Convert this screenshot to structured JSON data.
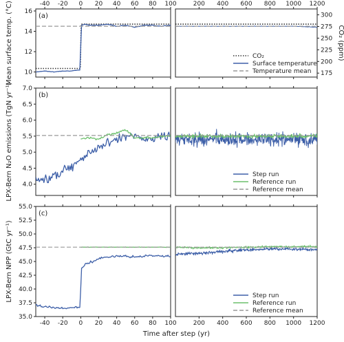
{
  "chart_data": [
    {
      "type": "line",
      "panel_label": "(a)",
      "ylabel": "Mean surface temp. (°C)",
      "ylabel_right": "CO₂ (ppm)",
      "ylim": [
        9.5,
        16.2
      ],
      "yticks": [
        10,
        12,
        14,
        16
      ],
      "ylim_right": [
        166.5,
        312.6
      ],
      "yticks_right": [
        175,
        200,
        225,
        250,
        275,
        300
      ],
      "left_xlim": [
        -50,
        100
      ],
      "left_xticks": [
        -40,
        -20,
        0,
        20,
        40,
        60,
        80,
        100
      ],
      "right_xlim": [
        0,
        1200
      ],
      "right_xticks": [
        200,
        400,
        600,
        800,
        1000,
        1200
      ],
      "xticks_top": true,
      "series": [
        {
          "name": "CO₂",
          "style": "dotted",
          "color": "#333333",
          "step_data": {
            "x": [
              -50,
              -0.5,
              0.5,
              100
            ],
            "y": [
              185,
              185,
              280,
              280
            ]
          },
          "ref_data": {
            "x": [
              0,
              1200
            ],
            "y": [
              280,
              280
            ]
          }
        },
        {
          "name": "Surface temperature",
          "style": "solid",
          "color": "#3d5fa8",
          "step_data": {
            "x": [
              -50,
              -40,
              -30,
              -20,
              -10,
              -1,
              0,
              1,
              5,
              10,
              20,
              30,
              40,
              50,
              60,
              70,
              80,
              90,
              100
            ],
            "y": [
              10.0,
              10.1,
              10.0,
              10.1,
              10.1,
              10.2,
              12.5,
              14.6,
              14.7,
              14.6,
              14.6,
              14.7,
              14.5,
              14.6,
              14.4,
              14.6,
              14.6,
              14.5,
              14.6
            ]
          },
          "ref_data": {
            "x": [
              0,
              200,
              400,
              600,
              800,
              1000,
              1200
            ],
            "y": [
              14.5,
              14.5,
              14.5,
              14.5,
              14.5,
              14.5,
              14.4
            ]
          }
        },
        {
          "name": "Temperature mean",
          "style": "dashed",
          "color": "#999999",
          "value": 14.5
        }
      ],
      "legend_position": "lower-right"
    },
    {
      "type": "line",
      "panel_label": "(b)",
      "ylabel": "LPX-Bern N₂O emissions (TgN yr⁻¹)",
      "ylim": [
        3.65,
        7.0
      ],
      "yticks": [
        4.0,
        4.5,
        5.0,
        5.5,
        6.0,
        6.5,
        7.0
      ],
      "left_xlim": [
        -50,
        100
      ],
      "right_xlim": [
        0,
        1200
      ],
      "series": [
        {
          "name": "Step run",
          "style": "solid",
          "color": "#3d5fa8",
          "step_data": {
            "x": [
              -50,
              -40,
              -30,
              -20,
              -10,
              0,
              10,
              20,
              30,
              40,
              50,
              60,
              70,
              80,
              90,
              100
            ],
            "y": [
              4.2,
              4.1,
              4.3,
              4.4,
              4.6,
              4.8,
              5.0,
              5.1,
              5.3,
              5.4,
              5.5,
              5.5,
              5.4,
              5.4,
              5.5,
              5.5
            ]
          },
          "ref_data": {
            "x": [
              0,
              100,
              200,
              300,
              400,
              500,
              600,
              700,
              800,
              900,
              1000,
              1100,
              1200
            ],
            "y": [
              5.4,
              5.4,
              5.4,
              5.4,
              5.4,
              5.4,
              5.4,
              5.4,
              5.4,
              5.4,
              5.4,
              5.4,
              5.4
            ]
          }
        },
        {
          "name": "Reference run",
          "style": "solid",
          "color": "#6bbf6b",
          "step_data": {
            "x": [
              0,
              10,
              20,
              30,
              40,
              50,
              60,
              70,
              80,
              90,
              100
            ],
            "y": [
              5.42,
              5.45,
              5.4,
              5.55,
              5.6,
              5.7,
              5.45,
              5.45,
              5.45,
              5.5,
              5.5
            ]
          },
          "ref_data": {
            "x": [
              0,
              100,
              200,
              300,
              400,
              500,
              600,
              700,
              800,
              900,
              1000,
              1100,
              1200
            ],
            "y": [
              5.5,
              5.5,
              5.5,
              5.5,
              5.5,
              5.5,
              5.5,
              5.5,
              5.5,
              5.5,
              5.5,
              5.5,
              5.5
            ]
          }
        },
        {
          "name": "Reference mean",
          "style": "dashed",
          "color": "#999999",
          "value": 5.52
        }
      ],
      "legend_position": "lower-right"
    },
    {
      "type": "line",
      "panel_label": "(c)",
      "ylabel": "LPX-Bern NPP (GtC yr⁻¹)",
      "ylim": [
        35.0,
        55.0
      ],
      "yticks": [
        35.0,
        37.5,
        40.0,
        42.5,
        45.0,
        47.5,
        50.0,
        52.5,
        55.0
      ],
      "left_xlim": [
        -50,
        100
      ],
      "left_xticks": [
        -40,
        -20,
        0,
        20,
        40,
        60,
        80,
        100
      ],
      "right_xlim": [
        0,
        1200
      ],
      "right_xticks": [
        200,
        400,
        600,
        800,
        1000,
        1200
      ],
      "xlabel": "Time after step (yr)",
      "series": [
        {
          "name": "Step run",
          "style": "solid",
          "color": "#3d5fa8",
          "step_data": {
            "x": [
              -50,
              -40,
              -30,
              -20,
              -10,
              -1,
              0,
              1,
              5,
              10,
              20,
              30,
              40,
              50,
              60,
              70,
              80,
              90,
              100
            ],
            "y": [
              37.2,
              36.8,
              36.6,
              36.5,
              36.6,
              36.7,
              40.0,
              43.8,
              44.5,
              44.8,
              45.5,
              45.9,
              45.9,
              46.0,
              45.8,
              46.0,
              46.1,
              45.9,
              46.0
            ]
          },
          "ref_data": {
            "x": [
              0,
              100,
              200,
              300,
              400,
              500,
              600,
              700,
              800,
              900,
              1000,
              1100,
              1200
            ],
            "y": [
              46.2,
              46.4,
              46.5,
              46.6,
              46.8,
              47.0,
              47.1,
              47.2,
              47.3,
              47.3,
              47.2,
              47.2,
              47.1
            ]
          }
        },
        {
          "name": "Reference run",
          "style": "solid",
          "color": "#6bbf6b",
          "step_data": {
            "x": [
              0,
              20,
              40,
              60,
              80,
              100
            ],
            "y": [
              47.6,
              47.6,
              47.6,
              47.6,
              47.6,
              47.6
            ]
          },
          "ref_data": {
            "x": [
              0,
              200,
              400,
              600,
              800,
              1000,
              1200
            ],
            "y": [
              47.6,
              47.5,
              47.5,
              47.6,
              47.7,
              47.7,
              47.7
            ]
          }
        },
        {
          "name": "Reference mean",
          "style": "dashed",
          "color": "#999999",
          "value": 47.6
        }
      ],
      "legend_position": "lower-right"
    }
  ]
}
